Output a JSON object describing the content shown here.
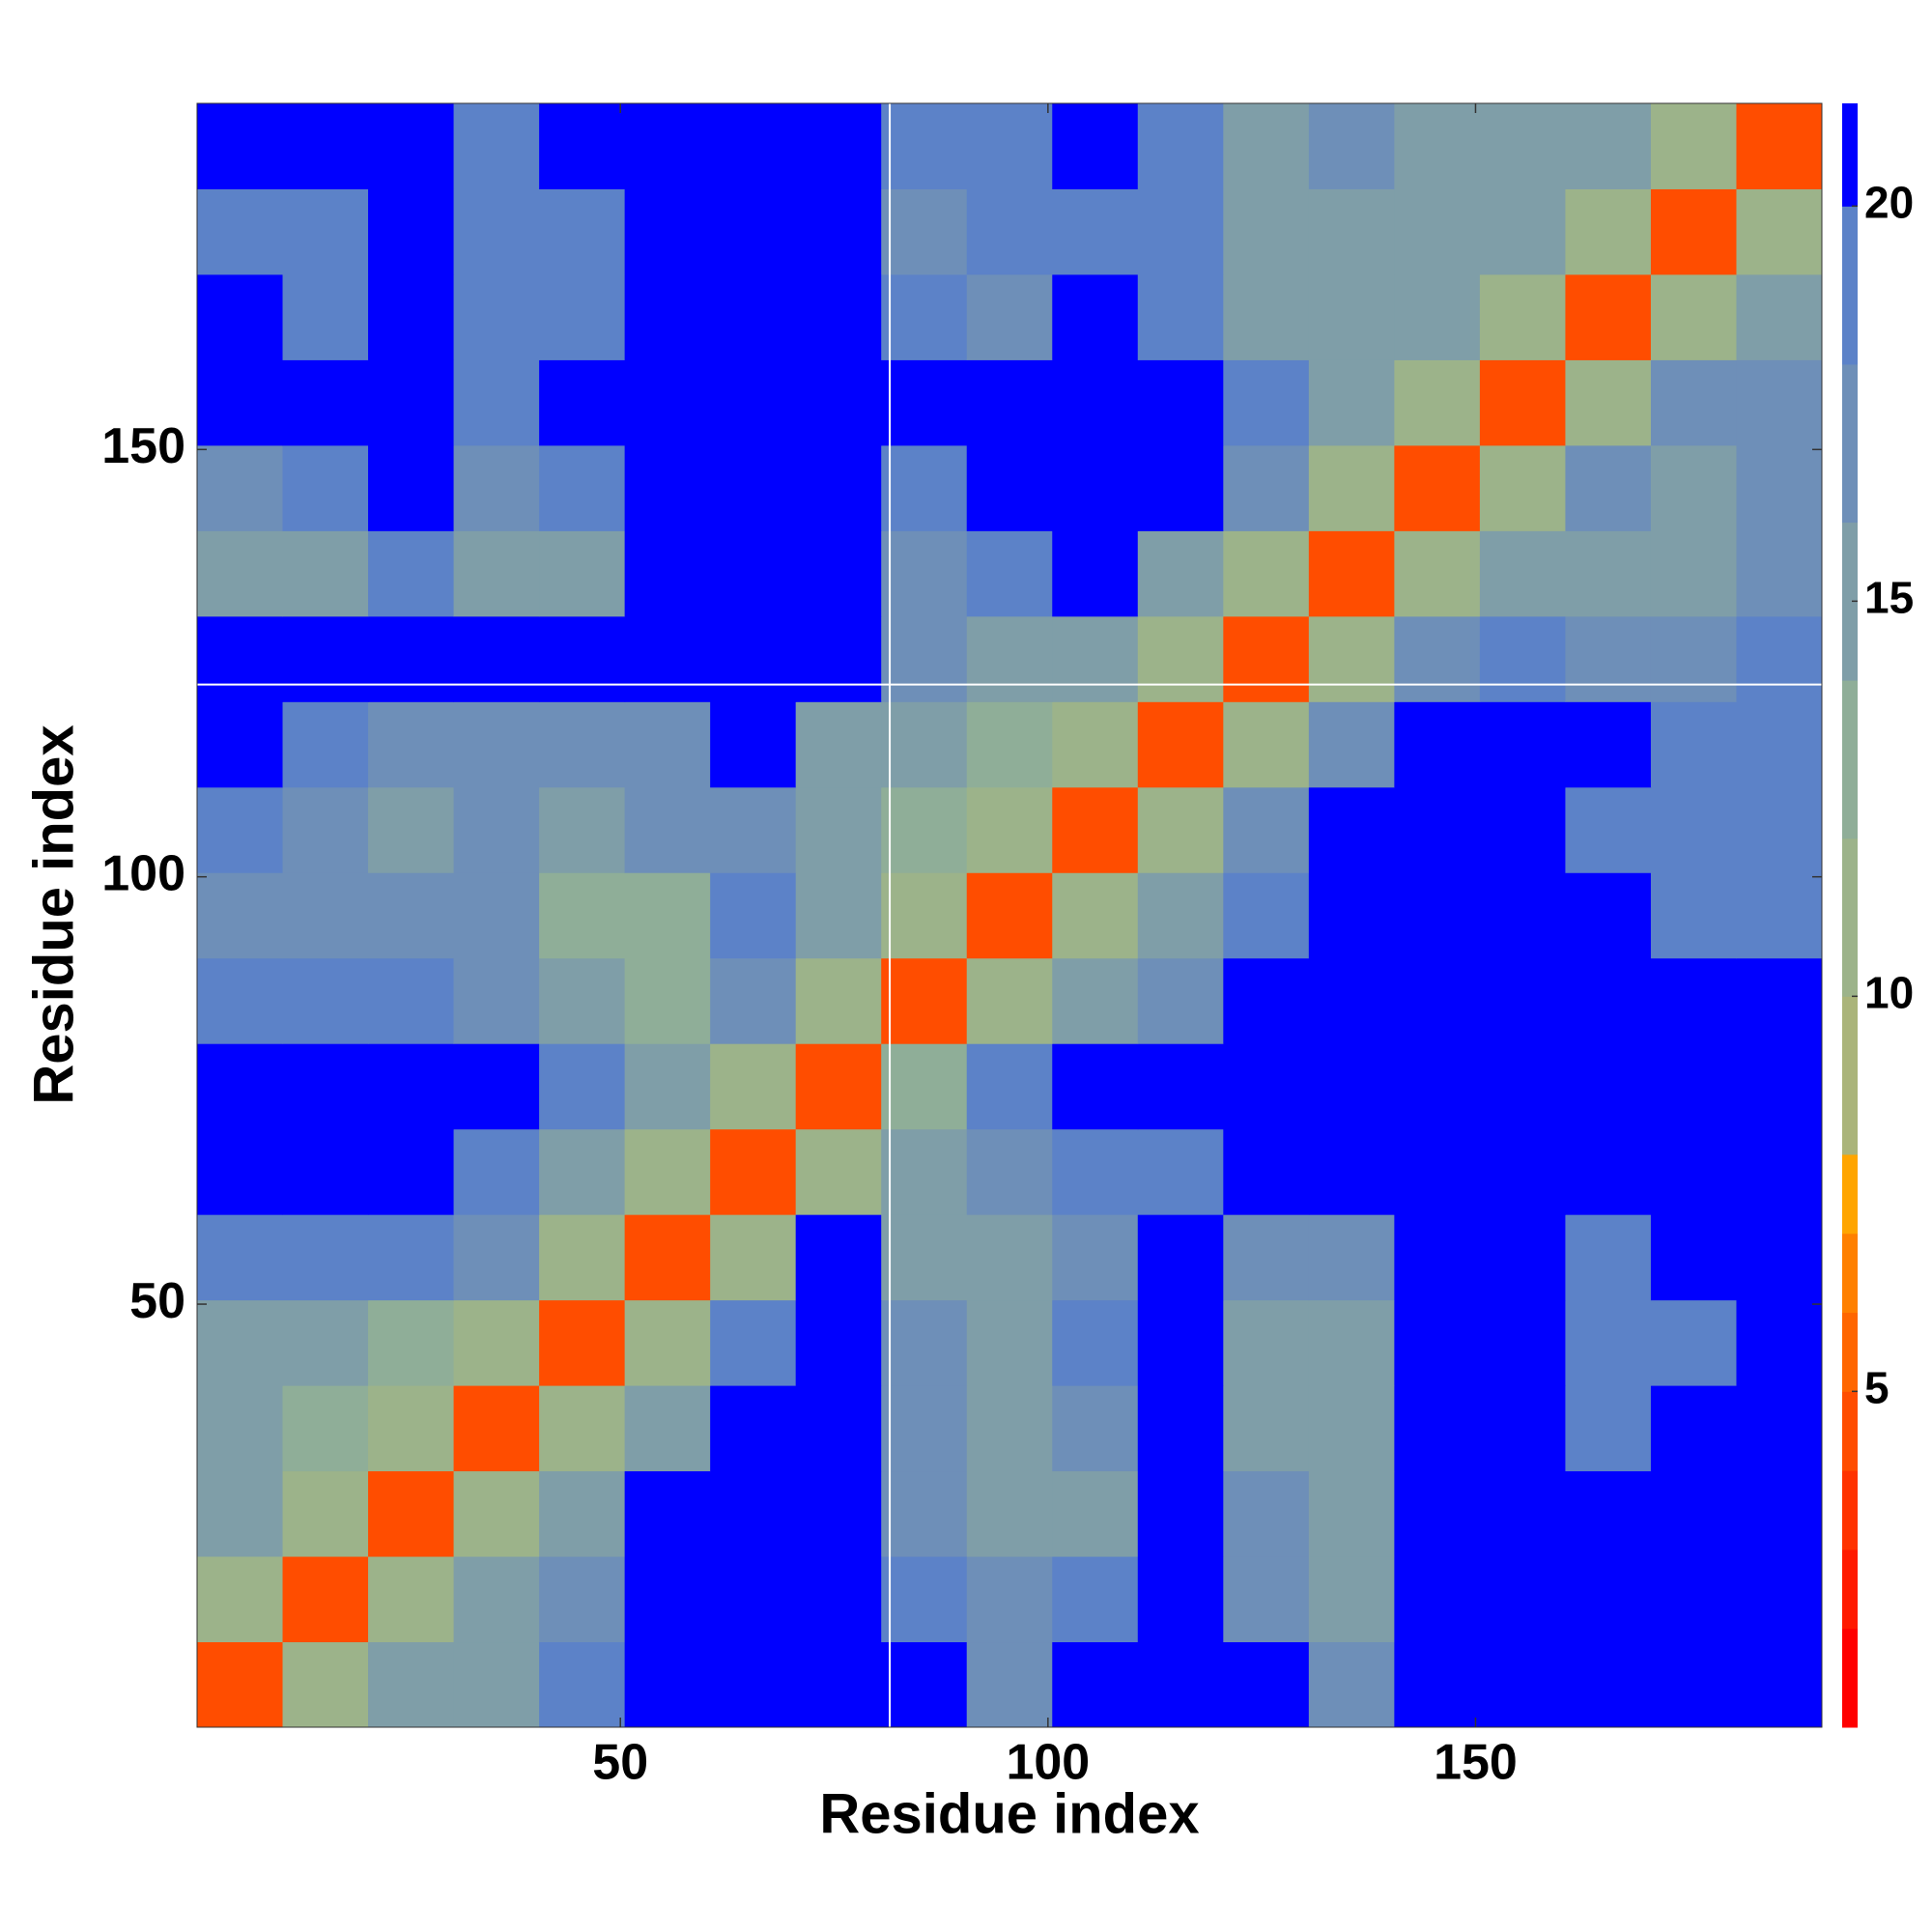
{
  "chart_data": {
    "type": "heatmap",
    "xlabel": "Residue index",
    "ylabel": "Residue index",
    "xlim": [
      0.5,
      190.5
    ],
    "ylim": [
      0.5,
      190.5
    ],
    "xticks": [
      50,
      100,
      150
    ],
    "yticks": [
      50,
      100,
      150
    ],
    "xbins": [
      0.5,
      10.5,
      20.5,
      30.5,
      40.5,
      50.5,
      60.5,
      70.5,
      80.5,
      90.5,
      100.5,
      110.5,
      120.5,
      130.5,
      140.5,
      150.5,
      160.5,
      170.5,
      180.5,
      190.5
    ],
    "ybins": [
      0.5,
      10.5,
      20.5,
      30.5,
      40.5,
      50.5,
      60.5,
      70.5,
      80.5,
      90.5,
      100.5,
      110.5,
      120.5,
      130.5,
      140.5,
      150.5,
      160.5,
      170.5,
      180.5,
      190.5
    ],
    "z": [
      [
        4,
        11,
        14,
        15,
        19,
        21,
        21,
        21,
        21,
        17,
        21,
        21,
        21,
        16,
        21,
        21,
        21,
        21,
        21
      ],
      [
        11,
        4,
        11,
        14,
        16,
        21,
        21,
        21,
        18,
        16,
        18,
        21,
        17,
        15,
        21,
        21,
        20,
        21,
        21
      ],
      [
        14,
        11,
        4,
        11,
        14,
        20,
        21,
        21,
        17,
        14,
        15,
        21,
        16,
        15,
        21,
        21,
        21,
        21,
        21
      ],
      [
        15,
        13,
        11,
        4,
        11,
        15,
        21,
        21,
        16,
        14,
        16,
        21,
        15,
        14,
        21,
        21,
        19,
        20,
        21
      ],
      [
        15,
        14,
        13,
        11,
        4,
        11,
        19,
        21,
        17,
        15,
        18,
        21,
        15,
        15,
        21,
        21,
        19,
        19,
        21
      ],
      [
        19,
        19,
        18,
        16,
        11,
        4,
        11,
        20,
        14,
        15,
        17,
        21,
        17,
        17,
        21,
        21,
        19,
        20,
        21
      ],
      [
        21,
        21,
        20,
        19,
        15,
        11,
        4,
        10,
        15,
        16,
        18,
        19,
        20,
        21,
        21,
        21,
        21,
        21,
        21
      ],
      [
        21,
        21,
        21,
        21,
        18,
        15,
        10,
        4,
        12,
        18,
        21,
        21,
        21,
        21,
        21,
        21,
        21,
        21,
        21
      ],
      [
        19,
        18,
        18,
        17,
        14,
        12,
        16,
        11,
        4,
        11,
        14,
        17,
        21,
        21,
        21,
        21,
        21,
        21,
        21
      ],
      [
        17,
        17,
        16,
        17,
        13,
        12,
        18,
        15,
        11,
        4,
        11,
        14,
        19,
        21,
        21,
        21,
        20,
        19,
        19
      ],
      [
        18,
        16,
        15,
        16,
        14,
        16,
        17,
        14,
        12,
        11,
        4,
        11,
        16,
        21,
        21,
        21,
        19,
        19,
        19
      ],
      [
        21,
        19,
        17,
        17,
        17,
        16,
        21,
        15,
        14,
        13,
        11,
        4,
        11,
        17,
        21,
        21,
        20,
        19,
        19
      ],
      [
        21,
        21,
        21,
        21,
        21,
        21,
        21,
        21,
        16,
        15,
        15,
        11,
        4,
        11,
        16,
        18,
        16,
        16,
        19
      ],
      [
        14,
        15,
        18,
        15,
        15,
        21,
        21,
        21,
        16,
        18,
        21,
        15,
        11,
        4,
        11,
        15,
        14,
        15,
        16
      ],
      [
        17,
        19,
        21,
        17,
        19,
        21,
        21,
        21,
        19,
        21,
        21,
        20,
        16,
        11,
        4,
        11,
        16,
        15,
        16
      ],
      [
        21,
        21,
        21,
        19,
        21,
        21,
        21,
        21,
        21,
        21,
        21,
        21,
        18,
        14,
        11,
        4,
        11,
        17,
        16
      ],
      [
        20,
        19,
        21,
        19,
        18,
        21,
        21,
        21,
        18,
        17,
        21,
        18,
        14,
        14,
        14,
        11,
        4,
        11,
        14
      ],
      [
        19,
        19,
        20,
        18,
        19,
        21,
        21,
        21,
        17,
        19,
        18,
        18,
        14,
        14,
        15,
        14,
        11,
        4,
        11
      ],
      [
        21,
        20,
        21,
        19,
        20,
        21,
        21,
        21,
        18,
        18,
        21,
        18,
        15,
        16,
        15,
        15,
        14,
        11,
        4
      ]
    ],
    "levels": [
      0.75,
      2,
      3,
      4,
      5,
      6,
      7,
      8,
      10,
      12,
      14,
      16,
      18,
      20,
      21.3
    ],
    "colors": [
      "#ff0000",
      "#ff1a00",
      "#ff3300",
      "#ff4d00",
      "#ff6600",
      "#ff8000",
      "#ffa500",
      "#aab47a",
      "#9cb38a",
      "#8fae98",
      "#7f9ea8",
      "#6e8fb8",
      "#5c82c8",
      "#0000ff"
    ],
    "zticks": [
      5,
      10,
      15,
      20
    ],
    "vlines": [
      81.5
    ],
    "hlines": [
      122.5
    ]
  }
}
